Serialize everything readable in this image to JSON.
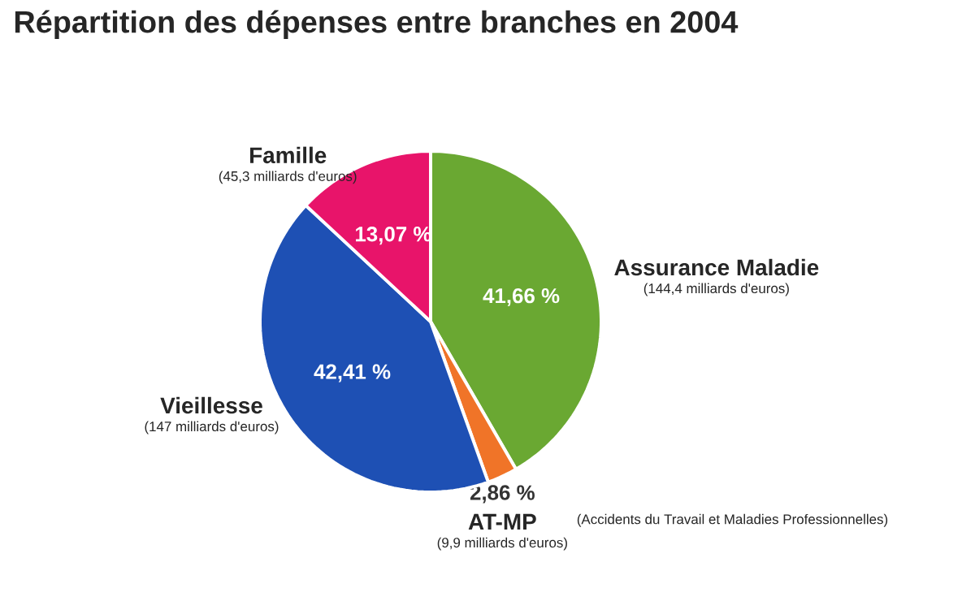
{
  "chart_data": {
    "type": "pie",
    "title": "Répartition des dépenses entre branches en 2004",
    "categories": [
      "Assurance Maladie",
      "AT-MP",
      "Vieillesse",
      "Famille"
    ],
    "values": [
      41.66,
      2.86,
      42.41,
      13.07
    ],
    "value_labels": [
      "41,66 %",
      "2,86 %",
      "42,41 %",
      "13,07 %"
    ],
    "colors": [
      "#6aa832",
      "#f07428",
      "#1e50b4",
      "#e8146a"
    ],
    "legend": false,
    "annotations": [
      "(144,4 milliards d'euros)",
      "(9,9 milliards d'euros)",
      "(147 milliards d'euros)",
      "(45,3 milliards d'euros)",
      "(Accidents du Travail et Maladies Professionnelles)"
    ]
  }
}
